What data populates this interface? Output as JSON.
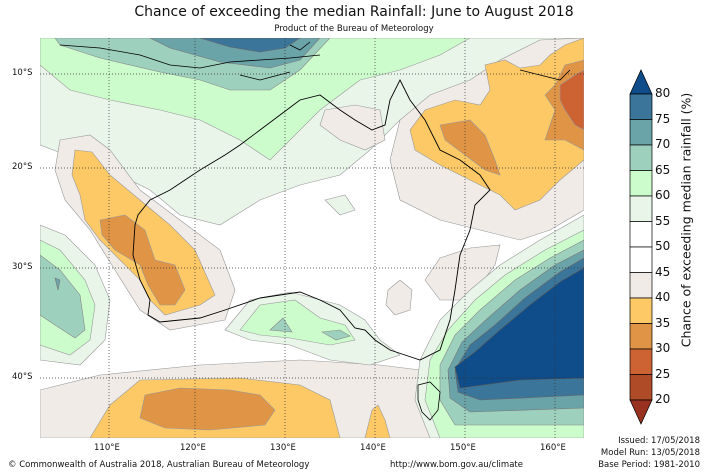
{
  "header": {
    "title": "Chance of exceeding the median Rainfall: June to August 2018",
    "subtitle": "Product of the Bureau of Meteorology"
  },
  "map": {
    "type": "contour-map",
    "region": "Australia",
    "latitude_labels": [
      "10°S",
      "20°S",
      "30°S",
      "40°S"
    ],
    "longitude_labels": [
      "110°E",
      "120°E",
      "130°E",
      "140°E",
      "150°E",
      "160°E"
    ]
  },
  "colorbar": {
    "label": "Chance of exceeding median rainfall (%)",
    "ticks": [
      "80",
      "75",
      "70",
      "65",
      "60",
      "55",
      "50",
      "45",
      "40",
      "35",
      "30",
      "25",
      "20"
    ],
    "bins": [
      {
        "range": ">80",
        "color": "#0f4c8a"
      },
      {
        "range": "75-80",
        "color": "#3b7599"
      },
      {
        "range": "70-75",
        "color": "#6aa3a8"
      },
      {
        "range": "65-70",
        "color": "#9dd0bd"
      },
      {
        "range": "60-65",
        "color": "#ccfccc"
      },
      {
        "range": "55-60",
        "color": "#e9f5e9"
      },
      {
        "range": "50-55",
        "color": "#ffffff"
      },
      {
        "range": "45-50",
        "color": "#ffffff"
      },
      {
        "range": "40-45",
        "color": "#f0ebe6"
      },
      {
        "range": "35-40",
        "color": "#fdc966"
      },
      {
        "range": "30-35",
        "color": "#e09445"
      },
      {
        "range": "25-30",
        "color": "#cd6333"
      },
      {
        "range": "20-25",
        "color": "#b04b27"
      },
      {
        "range": "<20",
        "color": "#98311f"
      }
    ]
  },
  "footer": {
    "copyright": "© Commonwealth of Australia 2018, Australian Bureau of Meteorology",
    "url": "http://www.bom.gov.au/climate",
    "issued": "Issued: 17/05/2018",
    "model_run": "Model Run: 13/05/2018",
    "base_period": "Base Period: 1981-2010"
  }
}
